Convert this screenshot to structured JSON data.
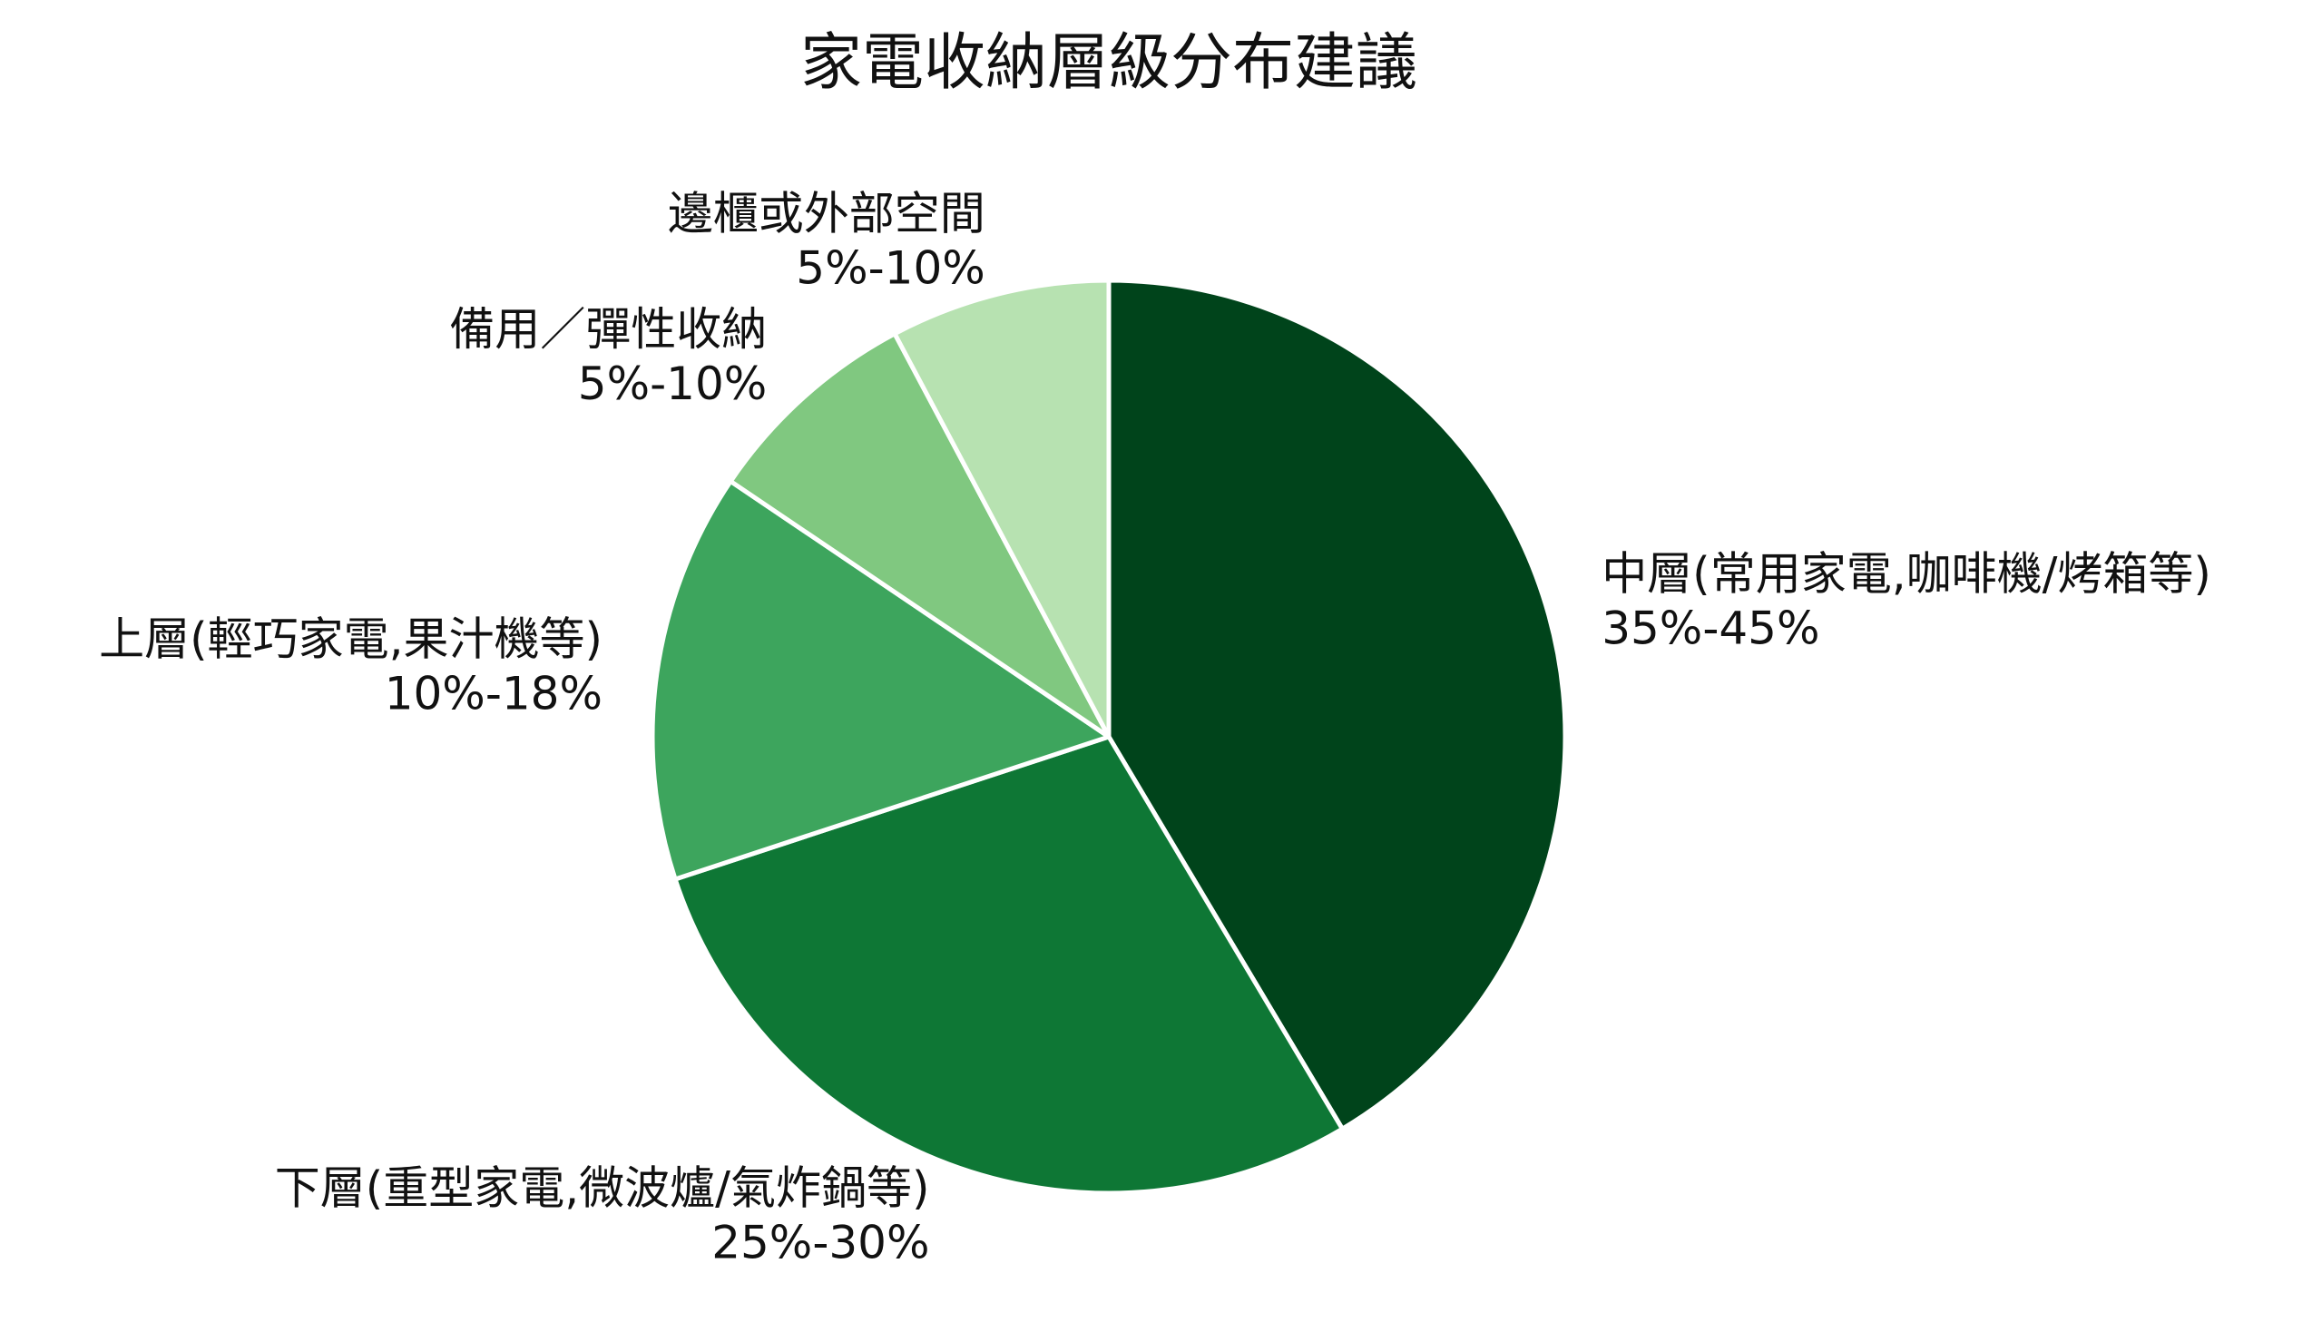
{
  "chart_data": {
    "type": "pie",
    "title": "家電收納層級分布建議",
    "start_angle_deg": 90,
    "direction": "clockwise",
    "slices": [
      {
        "label": "中層(常用家電,咖啡機/烤箱等)",
        "range": "35%-45%",
        "value": 40,
        "color": "#00441b"
      },
      {
        "label": "下層(重型家電,微波爐/氣炸鍋等)",
        "range": "25%-30%",
        "value": 27.5,
        "color": "#0e7735"
      },
      {
        "label": "上層(輕巧家電,果汁機等)",
        "range": "10%-18%",
        "value": 14,
        "color": "#3da55d"
      },
      {
        "label": "備用／彈性收納",
        "range": "5%-10%",
        "value": 7.5,
        "color": "#80c880"
      },
      {
        "label": "邊櫃或外部空間",
        "range": "5%-10%",
        "value": 7.5,
        "color": "#b7e2b1"
      }
    ],
    "slice_edge_color": "#ffffff"
  }
}
